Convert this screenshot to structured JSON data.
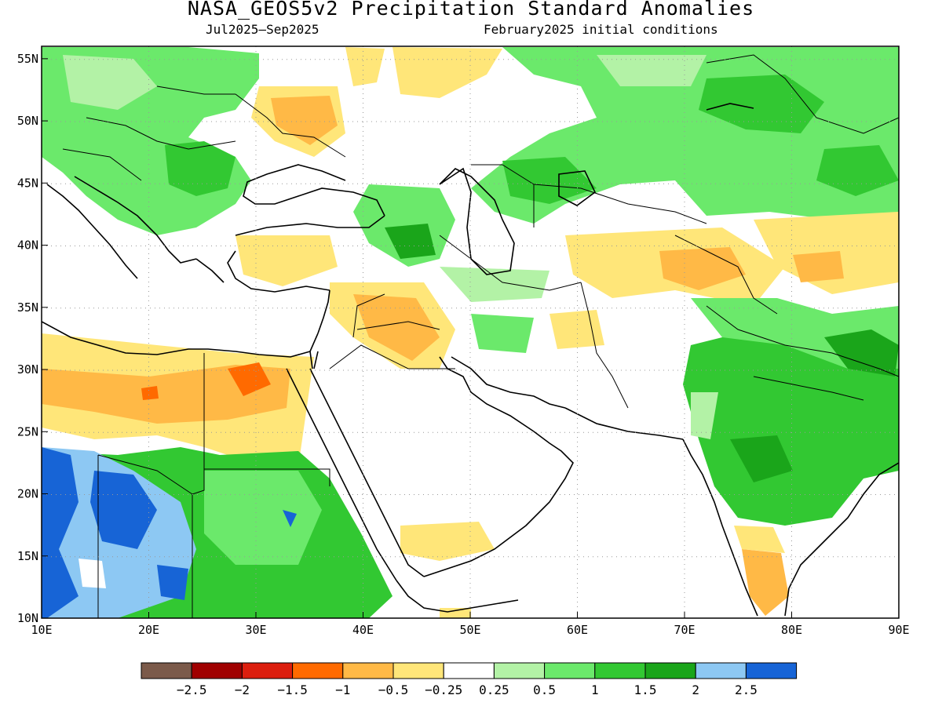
{
  "title": "NASA_GEOS5v2 Precipitation Standard Anomalies",
  "valid_period": "Jul2025–Sep2025",
  "init_conditions": "February2025 initial conditions",
  "map": {
    "lon_range": [
      10,
      90
    ],
    "lat_range": [
      10,
      56
    ],
    "lon_ticks": [
      "10E",
      "20E",
      "30E",
      "40E",
      "50E",
      "60E",
      "70E",
      "80E",
      "90E"
    ],
    "lat_ticks": [
      "55N",
      "50N",
      "45N",
      "40N",
      "35N",
      "30N",
      "25N",
      "20N",
      "15N",
      "10N"
    ]
  },
  "colorbar": {
    "colors": [
      "#7b5a4a",
      "#a00000",
      "#dc1e0e",
      "#ff6a00",
      "#ffb946",
      "#ffe679",
      "#ffffff",
      "#b3f2a6",
      "#6be96b",
      "#32c832",
      "#1aa51a",
      "#8dc8f3",
      "#1764d6"
    ],
    "labels": [
      "−2.5",
      "−2",
      "−1.5",
      "−1",
      "−0.5",
      "−0.25",
      "0.25",
      "0.5",
      "1",
      "1.5",
      "2",
      "2.5"
    ]
  }
}
